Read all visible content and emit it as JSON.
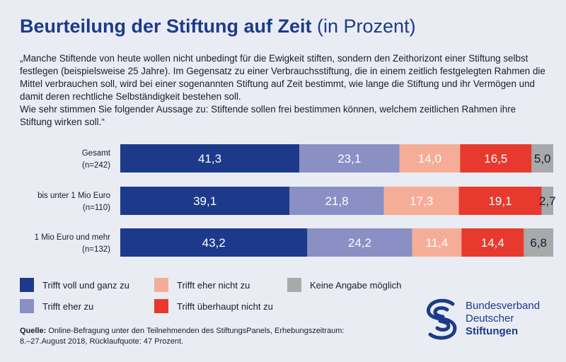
{
  "header": {
    "title": "Beurteilung der Stiftung auf Zeit",
    "subtitle": "(in Prozent)"
  },
  "quote": {
    "paragraph1": "„Manche Stiftende von heute wollen nicht unbedingt für die Ewigkeit stiften, sondern den Zeithorizont einer Stiftung selbst festlegen (beispielsweise 25 Jahre). Im Gegensatz zu einer Verbrauchsstiftung, die in einem zeitlich festgelegten Rahmen die Mittel verbrauchen soll, wird bei einer sogenannten Stiftung auf Zeit bestimmt, wie lange die Stiftung und ihr Vermögen und damit deren rechtliche Selbständigkeit bestehen soll.",
    "paragraph2": "Wie sehr stimmen Sie folgender Aussage zu: Stiftende sollen frei bestimmen können, welchem zeitlichen Rahmen ihre Stiftung wirken soll.“"
  },
  "chart_data": {
    "type": "bar",
    "orientation": "horizontal",
    "stacked": true,
    "categories": [
      {
        "line1": "Gesamt",
        "line2": "(n=242)"
      },
      {
        "line1": "bis unter 1 Mio Euro",
        "line2": "(n=110)"
      },
      {
        "line1": "1 Mio Euro und mehr",
        "line2": "(n=132)"
      }
    ],
    "series": [
      {
        "name": "Trifft voll und ganz zu",
        "color": "#1d3a8a",
        "label_color": "#ffffff",
        "values": [
          41.3,
          39.1,
          43.2
        ],
        "labels": [
          "41,3",
          "39,1",
          "43,2"
        ]
      },
      {
        "name": "Trifft eher zu",
        "color": "#8a90c4",
        "label_color": "#ffffff",
        "values": [
          23.1,
          21.8,
          24.2
        ],
        "labels": [
          "23,1",
          "21,8",
          "24,2"
        ]
      },
      {
        "name": "Trifft eher nicht zu",
        "color": "#f6ad98",
        "label_color": "#ffffff",
        "values": [
          14.0,
          17.3,
          11.4
        ],
        "labels": [
          "14,0",
          "17,3",
          "11,4"
        ]
      },
      {
        "name": "Trifft überhaupt nicht zu",
        "color": "#e8392e",
        "label_color": "#ffffff",
        "values": [
          16.5,
          19.1,
          14.4
        ],
        "labels": [
          "16,5",
          "19,1",
          "14,4"
        ]
      },
      {
        "name": "Keine Angabe möglich",
        "color": "#a7a9ab",
        "label_color": "#1a1a2e",
        "values": [
          5.0,
          2.7,
          6.8
        ],
        "labels": [
          "5,0",
          "2,7",
          "6,8"
        ]
      }
    ],
    "xlim": [
      0,
      100
    ],
    "grid": false,
    "legend_placement": "bottom"
  },
  "source": {
    "label": "Quelle:",
    "text": "Online-Befragung unter den Teilnehmenden des StiftungsPanels, Erhebungszeitraum: 8.–27.August 2018, Rücklaufquote: 47 Prozent."
  },
  "logo": {
    "line1": "Bundesverband",
    "line2": "Deutscher",
    "line3": "Stiftungen",
    "icon": "bundesverband-logo-icon"
  }
}
